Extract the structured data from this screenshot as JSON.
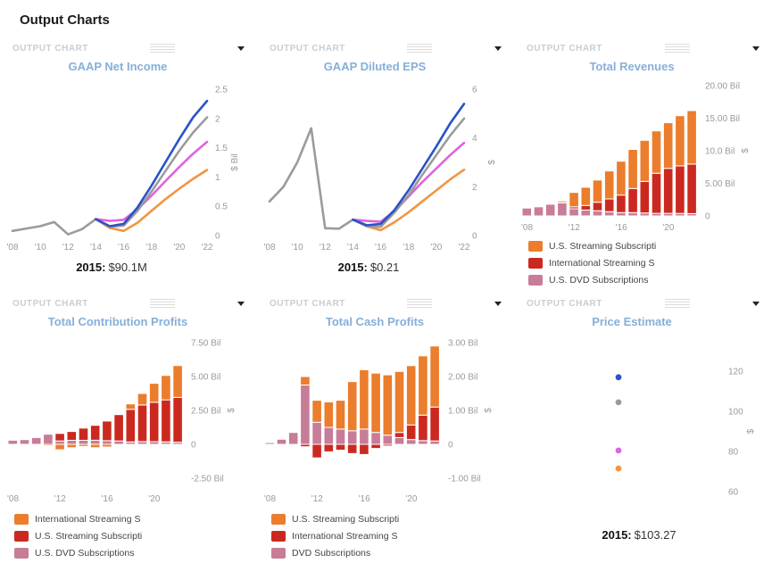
{
  "page": {
    "title": "Output Charts"
  },
  "chrome": {
    "panel_label": "OUTPUT CHART"
  },
  "colors": {
    "title_blue": "#86afd9",
    "header_gray": "#c8ced3",
    "axis_text": "#9a9a9a",
    "bar_orange": "#eb7d2c",
    "bar_red": "#cb2920",
    "bar_pink": "#c77c98",
    "line_blue": "#2a52c8",
    "line_gray": "#9b9b9b",
    "line_magenta": "#df63e2",
    "line_orange": "#f39440"
  },
  "chart_data": [
    {
      "type": "line",
      "title": "GAAP Net Income",
      "ylabel": "$ Bil",
      "ylim": [
        0,
        2.5
      ],
      "y_ticks": [
        0,
        0.5,
        1,
        1.5,
        2,
        2.5
      ],
      "y_tick_labels": [
        "0",
        "0.5",
        "1",
        "1.5",
        "2",
        "2.5"
      ],
      "x_range": [
        2008,
        2022
      ],
      "x_ticks": [
        2008,
        2010,
        2012,
        2014,
        2016,
        2018,
        2020,
        2022
      ],
      "x_tick_labels": [
        "'08",
        "'10",
        "'12",
        "'14",
        "'16",
        "'18",
        "'20",
        "'22"
      ],
      "annotation": {
        "label": "2015:",
        "value": "$90.1M"
      },
      "series": [
        {
          "name": "historical",
          "color": "#9b9b9b",
          "x_start": 2008,
          "values": [
            0.08,
            0.12,
            0.16,
            0.23,
            0.02,
            0.11,
            0.28
          ]
        },
        {
          "name": "forecast-orange",
          "color": "#f39440",
          "x_start": 2014,
          "values": [
            0.28,
            0.13,
            0.08,
            0.22,
            0.42,
            0.62,
            0.8,
            0.97,
            1.12
          ]
        },
        {
          "name": "forecast-magenta",
          "color": "#df63e2",
          "x_start": 2014,
          "values": [
            0.28,
            0.25,
            0.27,
            0.45,
            0.68,
            0.93,
            1.17,
            1.4,
            1.6
          ]
        },
        {
          "name": "forecast-gray",
          "color": "#9b9b9b",
          "x_start": 2014,
          "values": [
            0.28,
            0.15,
            0.17,
            0.42,
            0.75,
            1.1,
            1.45,
            1.76,
            2.02
          ]
        },
        {
          "name": "forecast-blue",
          "color": "#2a52c8",
          "x_start": 2014,
          "values": [
            0.28,
            0.16,
            0.2,
            0.48,
            0.85,
            1.25,
            1.65,
            2.02,
            2.3
          ]
        }
      ]
    },
    {
      "type": "line",
      "title": "GAAP Diluted EPS",
      "ylabel": "$",
      "ylim": [
        0,
        6
      ],
      "y_ticks": [
        0,
        2,
        4,
        6
      ],
      "y_tick_labels": [
        "0",
        "2",
        "4",
        "6"
      ],
      "x_range": [
        2008,
        2022
      ],
      "x_ticks": [
        2008,
        2010,
        2012,
        2014,
        2016,
        2018,
        2020,
        2022
      ],
      "x_tick_labels": [
        "'08",
        "'10",
        "'12",
        "'14",
        "'16",
        "'18",
        "'20",
        "'22"
      ],
      "annotation": {
        "label": "2015:",
        "value": "$0.21"
      },
      "series": [
        {
          "name": "historical",
          "color": "#9b9b9b",
          "x_start": 2008,
          "values": [
            1.4,
            2.0,
            3.0,
            4.4,
            0.3,
            0.28,
            0.65
          ]
        },
        {
          "name": "forecast-orange",
          "color": "#f39440",
          "x_start": 2014,
          "values": [
            0.65,
            0.38,
            0.22,
            0.55,
            0.95,
            1.4,
            1.85,
            2.3,
            2.7
          ]
        },
        {
          "name": "forecast-magenta",
          "color": "#df63e2",
          "x_start": 2014,
          "values": [
            0.65,
            0.6,
            0.57,
            1.0,
            1.6,
            2.2,
            2.75,
            3.3,
            3.8
          ]
        },
        {
          "name": "forecast-gray",
          "color": "#9b9b9b",
          "x_start": 2014,
          "values": [
            0.65,
            0.38,
            0.36,
            0.95,
            1.65,
            2.5,
            3.3,
            4.1,
            4.8
          ]
        },
        {
          "name": "forecast-blue",
          "color": "#2a52c8",
          "x_start": 2014,
          "values": [
            0.65,
            0.42,
            0.48,
            1.05,
            1.85,
            2.75,
            3.65,
            4.6,
            5.4
          ]
        }
      ]
    },
    {
      "type": "stacked_bar",
      "title": "Total Revenues",
      "ylabel": "$",
      "ylim": [
        0,
        20
      ],
      "y_ticks": [
        0,
        5,
        10,
        15,
        20
      ],
      "y_tick_labels": [
        "0",
        "5.00 Bil",
        "10.0 Bil",
        "15.00 Bil",
        "20.00 Bil"
      ],
      "years": [
        2008,
        2009,
        2010,
        2011,
        2012,
        2013,
        2014,
        2015,
        2016,
        2017,
        2018,
        2019,
        2020,
        2021,
        2022
      ],
      "x_tick_years": [
        2008,
        2012,
        2016,
        2020
      ],
      "x_tick_labels": [
        "'08",
        "'12",
        "'16",
        "'20"
      ],
      "series": [
        {
          "name": "U.S. DVD Subscriptions",
          "color": "#c77c98",
          "values": [
            1.2,
            1.4,
            1.8,
            2.0,
            1.1,
            0.9,
            0.8,
            0.65,
            0.5,
            0.5,
            0.45,
            0.4,
            0.4,
            0.38,
            0.36
          ]
        },
        {
          "name": "International Streaming S",
          "color": "#cb2920",
          "values": [
            0,
            0,
            0,
            0.05,
            0.3,
            0.7,
            1.3,
            1.95,
            2.7,
            3.7,
            4.85,
            6.15,
            6.9,
            7.3,
            7.6
          ]
        },
        {
          "name": "U.S. Streaming Subscripti",
          "color": "#eb7d2c",
          "values": [
            0,
            0,
            0,
            0.25,
            2.2,
            2.8,
            3.4,
            4.3,
            5.2,
            6.0,
            6.3,
            6.5,
            7.0,
            7.7,
            8.2
          ]
        }
      ],
      "legend": [
        {
          "label": "U.S. Streaming Subscripti",
          "color": "#eb7d2c"
        },
        {
          "label": "International Streaming S",
          "color": "#cb2920"
        },
        {
          "label": "U.S. DVD Subscriptions",
          "color": "#c77c98"
        }
      ]
    },
    {
      "type": "stacked_bar",
      "title": "Total Contribution Profits",
      "ylabel": "$",
      "ylim": [
        -2.5,
        7.5
      ],
      "y_ticks": [
        -2.5,
        0,
        2.5,
        5,
        7.5
      ],
      "y_tick_labels": [
        "-2.50 Bil",
        "0",
        "2.50 Bil",
        "5.00 Bil",
        "7.50 Bil"
      ],
      "years": [
        2008,
        2009,
        2010,
        2011,
        2012,
        2013,
        2014,
        2015,
        2016,
        2017,
        2018,
        2019,
        2020,
        2021,
        2022
      ],
      "x_tick_years": [
        2008,
        2012,
        2016,
        2020
      ],
      "x_tick_labels": [
        "'08",
        "'12",
        "'16",
        "'20"
      ],
      "series": [
        {
          "name": "U.S. DVD Subscriptions",
          "color": "#c77c98",
          "values": [
            0.3,
            0.35,
            0.5,
            0.75,
            0.25,
            0.3,
            0.3,
            0.3,
            0.27,
            0.25,
            0.18,
            0.2,
            0.2,
            0.18,
            0.16
          ]
        },
        {
          "name": "U.S. Streaming Subscripti",
          "color": "#cb2920",
          "values": [
            0,
            0,
            0,
            0.05,
            0.55,
            0.65,
            0.9,
            1.1,
            1.45,
            1.95,
            2.4,
            2.7,
            2.9,
            3.1,
            3.3
          ]
        },
        {
          "name": "International Streaming S",
          "color": "#eb7d2c",
          "values": [
            0,
            0,
            0,
            -0.1,
            -0.4,
            -0.25,
            -0.15,
            -0.25,
            -0.2,
            0.05,
            0.4,
            0.85,
            1.4,
            1.8,
            2.35
          ]
        }
      ],
      "legend": [
        {
          "label": "International Streaming S",
          "color": "#eb7d2c"
        },
        {
          "label": "U.S. Streaming Subscripti",
          "color": "#cb2920"
        },
        {
          "label": "U.S. DVD Subscriptions",
          "color": "#c77c98"
        }
      ]
    },
    {
      "type": "stacked_bar",
      "title": "Total Cash Profits",
      "ylabel": "$",
      "ylim": [
        -1,
        3
      ],
      "y_ticks": [
        -1,
        0,
        1,
        2,
        3
      ],
      "y_tick_labels": [
        "-1.00 Bil",
        "0",
        "1.00 Bil",
        "2.00 Bil",
        "3.00 Bil"
      ],
      "years": [
        2008,
        2009,
        2010,
        2011,
        2012,
        2013,
        2014,
        2015,
        2016,
        2017,
        2018,
        2019,
        2020,
        2021,
        2022
      ],
      "x_tick_years": [
        2008,
        2012,
        2016,
        2020
      ],
      "x_tick_labels": [
        "'08",
        "'12",
        "'16",
        "'20"
      ],
      "series": [
        {
          "name": "DVD Subscriptions",
          "color": "#c77c98",
          "values": [
            0.05,
            0.15,
            0.35,
            1.75,
            0.65,
            0.5,
            0.45,
            0.4,
            0.45,
            0.35,
            0.27,
            0.2,
            0.14,
            0.11,
            0.1
          ]
        },
        {
          "name": "International Streaming S",
          "color": "#cb2920",
          "values": [
            0,
            0,
            0,
            -0.07,
            -0.4,
            -0.22,
            -0.17,
            -0.27,
            -0.3,
            -0.12,
            -0.05,
            0.15,
            0.43,
            0.75,
            1.0
          ]
        },
        {
          "name": "U.S. Streaming Subscripti",
          "color": "#eb7d2c",
          "values": [
            0,
            0,
            0,
            0.25,
            0.65,
            0.75,
            0.85,
            1.45,
            1.75,
            1.75,
            1.78,
            1.8,
            1.75,
            1.75,
            1.8
          ]
        }
      ],
      "legend": [
        {
          "label": "U.S. Streaming Subscripti",
          "color": "#eb7d2c"
        },
        {
          "label": "International Streaming S",
          "color": "#cb2920"
        },
        {
          "label": "DVD Subscriptions",
          "color": "#c77c98"
        }
      ]
    },
    {
      "type": "scatter",
      "title": "Price Estimate",
      "ylabel": "$",
      "ylim": [
        60,
        120
      ],
      "y_ticks": [
        60,
        80,
        100,
        120
      ],
      "y_tick_labels": [
        "60",
        "80",
        "100",
        "120"
      ],
      "annotation": {
        "label": "2015:",
        "value": "$103.27"
      },
      "points": [
        {
          "name": "estimate-blue",
          "color": "#2a52c8",
          "y": 117
        },
        {
          "name": "estimate-gray",
          "color": "#9b9b9b",
          "y": 104.5
        },
        {
          "name": "estimate-magenta",
          "color": "#df63e2",
          "y": 80.5
        },
        {
          "name": "estimate-orange",
          "color": "#f39440",
          "y": 71.5
        }
      ]
    }
  ]
}
